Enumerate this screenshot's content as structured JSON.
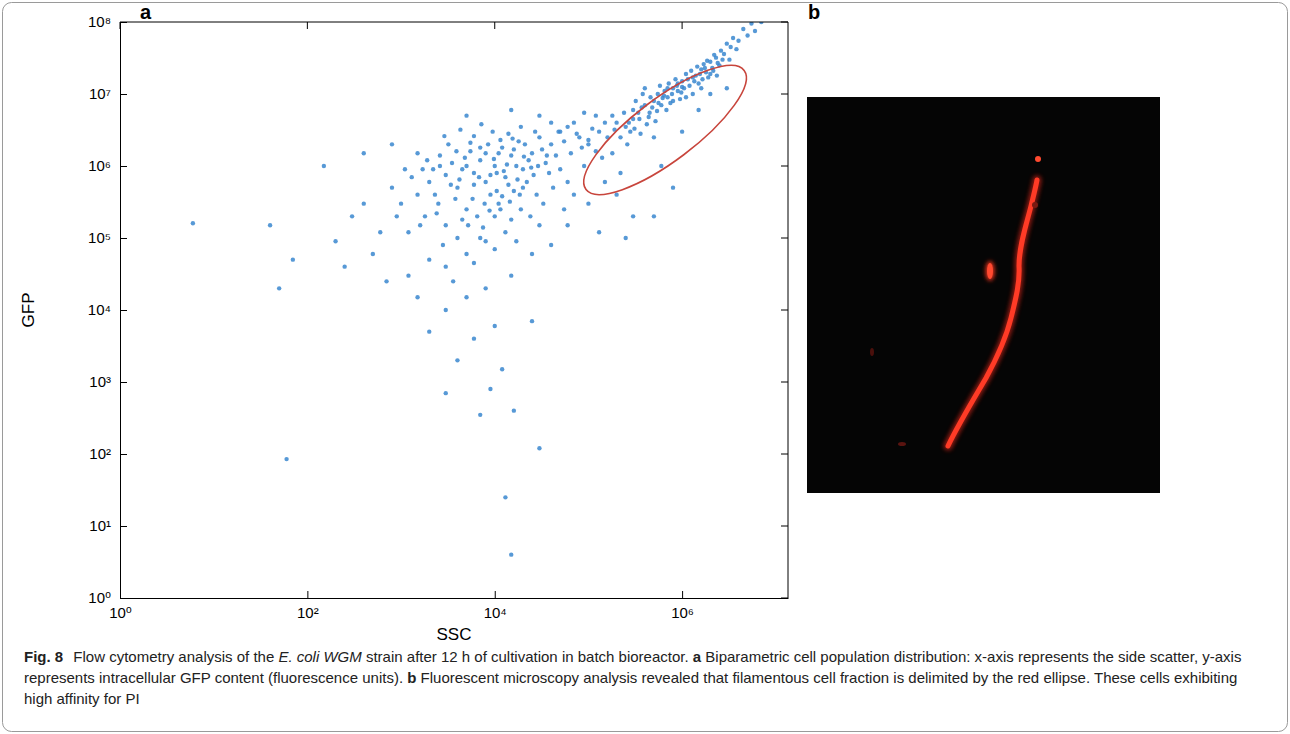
{
  "chart_data": {
    "type": "scatter",
    "x_label": "SSC",
    "y_label": "GFP",
    "log": true,
    "color": "#3a87cf",
    "marker": "dot",
    "xlim": [
      1,
      13500000
    ],
    "ylim": [
      1,
      100000000
    ],
    "xticks": [
      {
        "value": 1,
        "label": "10⁰"
      },
      {
        "value": 100,
        "label": "10²"
      },
      {
        "value": 10000,
        "label": "10⁴"
      },
      {
        "value": 1000000,
        "label": "10⁶"
      }
    ],
    "yticks": [
      {
        "value": 1,
        "label": "10⁰"
      },
      {
        "value": 10,
        "label": "10¹"
      },
      {
        "value": 100,
        "label": "10²"
      },
      {
        "value": 1000,
        "label": "10³"
      },
      {
        "value": 10000,
        "label": "10⁴"
      },
      {
        "value": 100000,
        "label": "10⁵"
      },
      {
        "value": 1000000,
        "label": "10⁶"
      },
      {
        "value": 10000000,
        "label": "10⁷"
      },
      {
        "value": 100000000,
        "label": "10⁸"
      }
    ],
    "x": [
      2500.0,
      4000.0,
      6000.0,
      8000.0,
      10000.0,
      13000.0,
      9000.0,
      5000.0,
      3000.0,
      7000.0,
      15000.0,
      20000.0,
      11000.0,
      6500.0,
      4500.0,
      2000.0,
      3500.0,
      5500.0,
      8500.0,
      12000.0,
      18000.0,
      25000.0,
      30000.0,
      22000.0,
      16000.0,
      10000.0,
      7500.0,
      4000.0,
      2800.0,
      1800.0,
      1500.0,
      2200.0,
      3200.0,
      6000.0,
      9500.0,
      14000.0,
      40000.0,
      35000.0,
      28000.0,
      19000.0,
      13000.0,
      8000.0,
      5000.0,
      3000.0,
      1200.0,
      1000.0,
      1300.0,
      2600.0,
      4800.0,
      7000.0,
      11000.0,
      17000.0,
      23000.0,
      14000.0,
      9000.0,
      6000.0,
      3800.0,
      2400.0,
      1600.0,
      5200.0,
      7800.0,
      10500.0,
      12500.0,
      16000.0,
      21000.0,
      27000.0,
      32000.0,
      45000.0,
      50000.0,
      42000.0,
      33000.0,
      24000.0,
      15000.0,
      10000.0,
      6000.0,
      3600.0,
      2000.0,
      900.0,
      800.0,
      1100.0,
      1900.0,
      2900.0,
      4300.0,
      7200.0,
      11500.0,
      19000.0,
      55000.0,
      65000.0,
      60000.0,
      75000.0,
      38000.0,
      26000.0,
      17500.0,
      12000.0,
      8800.0,
      5800.0,
      4200.0,
      3000.0,
      2300.0,
      1700.0,
      5000.0,
      6800.0,
      9800.0,
      13500.0,
      15500.0,
      20500.0,
      24500.0,
      18500.0,
      11500.0,
      7000.0,
      4500.0,
      3400.0,
      2600.0,
      3900.0,
      5500.0,
      8000.0,
      10500.0,
      14500.0,
      20000.0,
      29000.0,
      36000.0,
      48000.0,
      85000.0,
      100000.0,
      110000.0,
      90000.0,
      70000.0,
      55000.0,
      30000.0,
      17000.0,
      600.0,
      400.0,
      300.0,
      250.0,
      500.0,
      700.0,
      1200.0,
      1500.0,
      3000.0,
      5000.0,
      8000.0,
      15000.0,
      25000.0,
      40000.0,
      60000.0,
      100000.0,
      150000.0,
      200000.0,
      130000.0,
      300000.0,
      2000.0,
      6000.0,
      10000.0,
      12000.0,
      4000.0,
      9000.0,
      25000.0,
      7000.0,
      16000.0,
      3000.0,
      40.0,
      70.0,
      150.0,
      6,
      50.0,
      200.0,
      60.0,
      15000.0,
      13000.0,
      30000.0,
      1500.0,
      800.0,
      400.0,
      5000.0,
      15000.0,
      30000.0,
      500000.0,
      800000.0,
      600000.0,
      250000.0,
      100000.0,
      130000.0,
      160000.0,
      200000.0,
      250000.0,
      180000.0,
      300000.0,
      350000.0,
      400000.0,
      450000.0,
      500000.0,
      550000.0,
      600000.0,
      700000.0,
      800000.0,
      900000.0,
      1000000.0,
      1200000.0,
      1400000.0,
      1600000.0,
      1800000.0,
      2000000.0,
      2300000.0,
      2600000.0,
      3000000.0,
      3500000.0,
      4500000.0,
      5500000.0,
      220000.0,
      280000.0,
      320000.0,
      380000.0,
      420000.0,
      480000.0,
      520000.0,
      580000.0,
      650000.0,
      680000.0,
      750000.0,
      850000.0,
      950000.0,
      1100000.0,
      1300000.0,
      1500000.0,
      1700000.0,
      1900000.0,
      2100000.0,
      2400000.0,
      2800000.0,
      3200000.0,
      150000.0,
      120000.0,
      260000.0,
      360000.0,
      400000.0,
      460000.0,
      540000.0,
      620000.0,
      720000.0,
      780000.0,
      880000.0,
      980000.0,
      1050000.0,
      1150000.0,
      1250000.0,
      1350000.0,
      1450000.0,
      1550000.0,
      1650000.0,
      1750000.0,
      2000000.0,
      2200000.0,
      2500000.0,
      2700000.0,
      3300000.0,
      3800000.0,
      4000000.0,
      5000000.0,
      6000000.0,
      7000000.0,
      300000.0,
      340000.0,
      440000.0,
      560000.0,
      640000.0,
      700000.0,
      800000.0,
      900000.0,
      1000000.0,
      1100000.0,
      1300000.0,
      1600000.0,
      1850000.0,
      2150000.0,
      2350000.0,
      190000.0,
      240000.0,
      270000.0,
      310000.0,
      370000.0,
      50000.0,
      70000.0,
      60000.0,
      80000.0,
      120000.0,
      90000.0,
      40000.0,
      140000.0,
      180000.0,
      220000.0,
      1000000.0,
      2000000.0,
      1500000.0,
      3000000.0,
      500000.0
    ],
    "values": [
      300000.0,
      500000.0,
      800000.0,
      600000.0,
      1000000.0,
      700000.0,
      400000.0,
      250000.0,
      150000.0,
      1200000.0,
      1400000.0,
      900000.0,
      300000.0,
      200000.0,
      900000.0,
      600000.0,
      1100000.0,
      1600000.0,
      2000000.0,
      1800000.0,
      2200000.0,
      1500000.0,
      2500000.0,
      600000.0,
      450000.0,
      200000.0,
      140000.0,
      100000.0,
      80000.0,
      200000.0,
      400000.0,
      900000.0,
      2000000.0,
      2600000.0,
      3000000.0,
      2800000.0,
      2000000.0,
      1100000.0,
      400000.0,
      250000.0,
      120000.0,
      90000.0,
      60000.0,
      40000.0,
      120000.0,
      300000.0,
      700000.0,
      1400000.0,
      1300000.0,
      1800000.0,
      1500000.0,
      1000000.0,
      1200000.0,
      550000.0,
      750000.0,
      550000.0,
      350000.0,
      220000.0,
      150000.0,
      150000.0,
      300000.0,
      450000.0,
      850000.0,
      1700000.0,
      2000000.0,
      3000000.0,
      1700000.0,
      1400000.0,
      900000.0,
      500000.0,
      300000.0,
      200000.0,
      180000.0,
      70000.0,
      45000.0,
      25000.0,
      50000.0,
      200000.0,
      500000.0,
      900000.0,
      1200000.0,
      2600000.0,
      3200000.0,
      3800000.0,
      2300000.0,
      3500000.0,
      2200000.0,
      1500000.0,
      600000.0,
      2800000.0,
      800000.0,
      750000.0,
      650000.0,
      380000.0,
      240000.0,
      350000.0,
      650000.0,
      750000.0,
      400000.0,
      900000.0,
      1000000.0,
      700000.0,
      1250000.0,
      1050000.0,
      2400000.0,
      1350000.0,
      950000.0,
      400000.0,
      250000.0,
      100000.0,
      180000.0,
      550000.0,
      1000000.0,
      1600000.0,
      2100000.0,
      1500000.0,
      800000.0,
      320000.0,
      500000.0,
      1000000.0,
      1400000.0,
      3000000.0,
      1800000.0,
      2300000.0,
      3300000.0,
      1000000.0,
      400000.0,
      250000.0,
      150000.0,
      90000.0,
      120000.0,
      300000.0,
      200000.0,
      40000.0,
      60000.0,
      25000.0,
      30000.0,
      15000.0,
      10000.0,
      15000.0,
      20000.0,
      30000.0,
      60000.0,
      80000.0,
      150000.0,
      300000.0,
      600000.0,
      400000.0,
      120000.0,
      200000.0,
      5000.0,
      4000.0,
      6000.0,
      1500.0,
      2000.0,
      800.0,
      7000.0,
      350.0,
      400.0,
      700.0,
      150000.0,
      50000.0,
      1000000.0,
      160000.0,
      20000.0,
      90000.0,
      85,
      4,
      25,
      120,
      1500000.0,
      2000000.0,
      1500000.0,
      5000000.0,
      6000000.0,
      5000000.0,
      200000.0,
      500000.0,
      1000000.0,
      100000.0,
      2000000.0,
      3000000.0,
      2500000.0,
      4000000.0,
      3500000.0,
      5000000.0,
      6000000.0,
      4500000.0,
      7000000.0,
      5500000.0,
      8000000.0,
      10000000.0,
      7000000.0,
      9000000.0,
      12000000.0,
      11000000.0,
      15000000.0,
      13000000.0,
      18000000.0,
      22000000.0,
      20000000.0,
      28000000.0,
      32000000.0,
      40000000.0,
      50000000.0,
      60000000.0,
      80000000.0,
      95000000.0,
      2500000.0,
      3000000.0,
      8000000.0,
      10000000.0,
      3800000.0,
      6500000.0,
      4200000.0,
      13000000.0,
      11000000.0,
      6000000.0,
      7500000.0,
      16000000.0,
      8500000.0,
      19000000.0,
      10000000.0,
      14000000.0,
      26000000.0,
      17000000.0,
      23000000.0,
      27000000.0,
      36000000.0,
      30000000.0,
      4000000.0,
      1600000.0,
      2000000.0,
      2800000.0,
      12000000.0,
      9000000.0,
      5800000.0,
      8800000.0,
      14000000.0,
      10000000.0,
      13000000.0,
      10500000.0,
      12000000.0,
      16000000.0,
      21000000.0,
      15000000.0,
      24000000.0,
      19000000.0,
      16000000.0,
      23000000.0,
      19000000.0,
      35000000.0,
      25000000.0,
      30000000.0,
      45000000.0,
      42000000.0,
      55000000.0,
      65000000.0,
      75000000.0,
      100000000.0,
      4500000.0,
      5500000.0,
      4800000.0,
      7500000.0,
      9500000.0,
      12000000.0,
      8000000.0,
      14000000.0,
      12500000.0,
      9000000.0,
      17000000.0,
      12000000.0,
      29000000.0,
      21000000.0,
      18000000.0,
      3200000.0,
      5500000.0,
      4000000.0,
      3300000.0,
      6500000.0,
      3000000.0,
      4000000.0,
      3500000.0,
      2500000.0,
      5000000.0,
      5500000.0,
      4000000.0,
      1300000.0,
      1500000.0,
      800000.0,
      3000000.0,
      10000000.0,
      6000000.0,
      12000000.0,
      2500000.0
    ]
  },
  "figure": {
    "panel_labels": [
      "a",
      "b"
    ]
  },
  "caption": {
    "label": "Fig. 8",
    "text_1": "Flow cytometry analysis of the",
    "organism": "E. coli WGM",
    "text_2": "strain after 12 h of cultivation in batch bioreactor.",
    "panel_a": "a",
    "text_a": "Biparametric cell population distribution: x-axis represents the side scatter, y-axis represents intracellular GFP content (fluorescence units).",
    "panel_b": "b",
    "text_b": "Fluorescent microscopy analysis revealed that filamentous cell fraction is delimited by the red ellipse. These cells exhibiting high affinity for PI"
  }
}
